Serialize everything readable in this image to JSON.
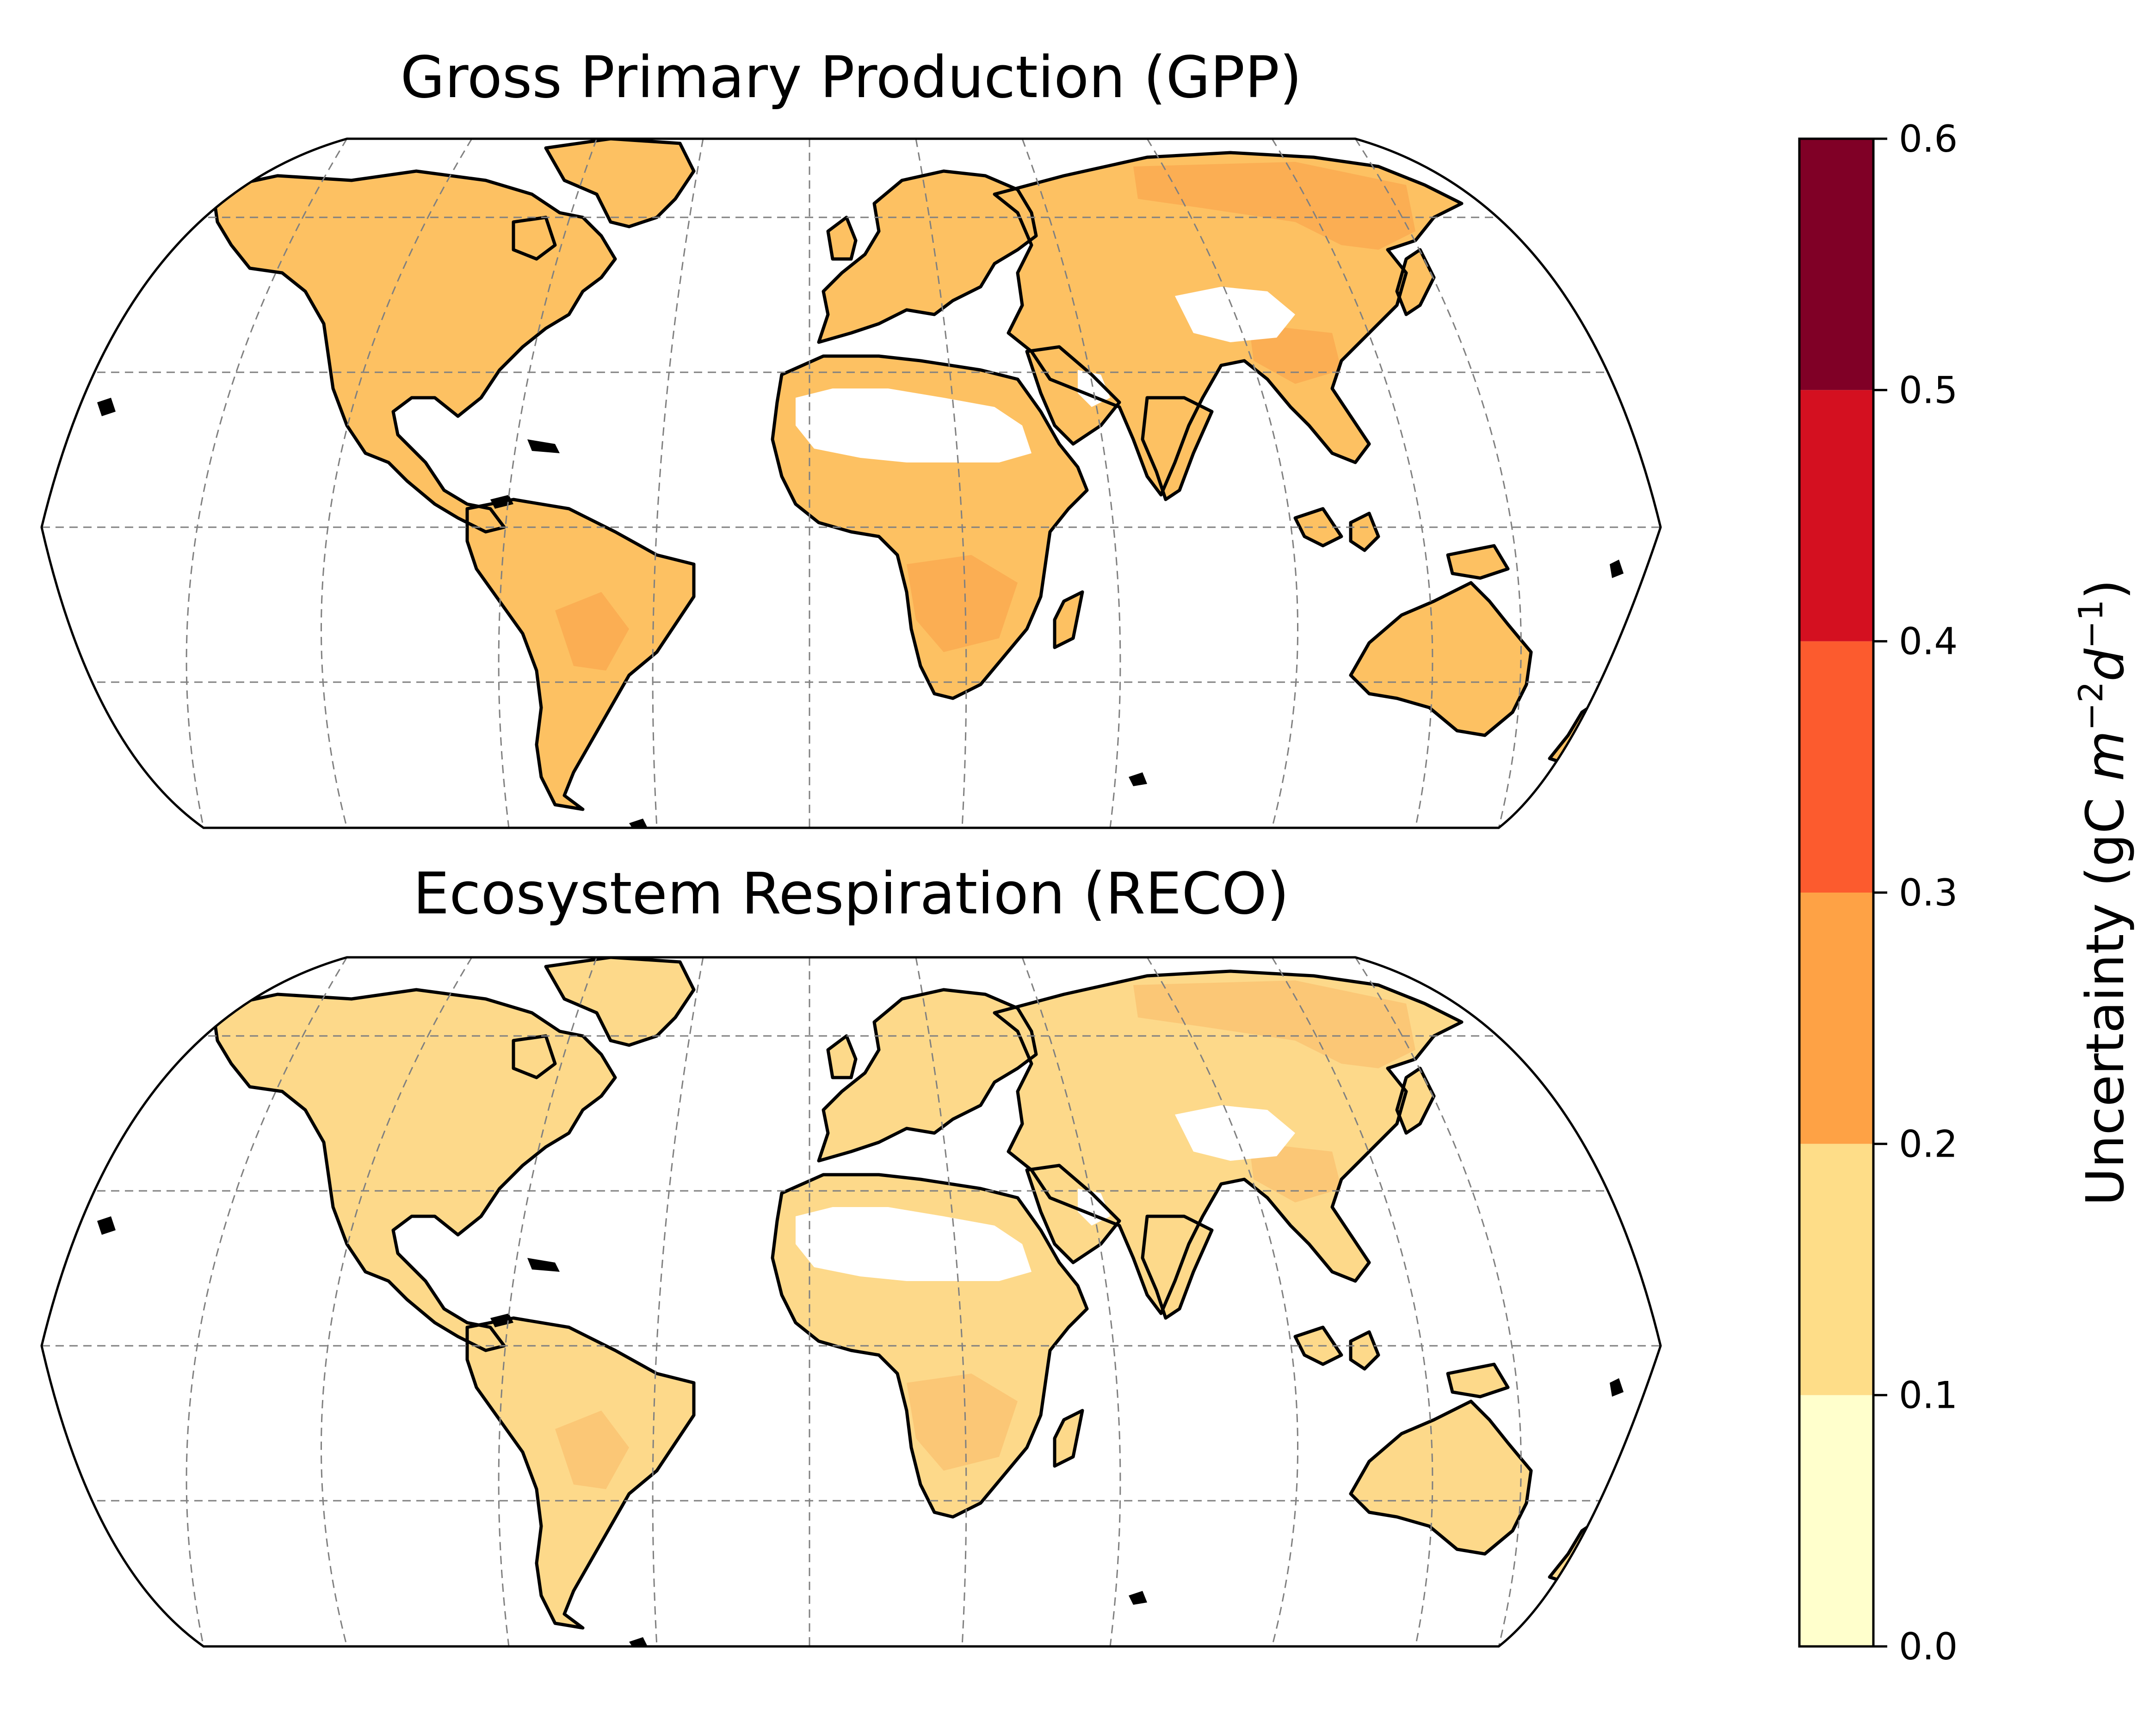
{
  "panels": [
    {
      "title": "Gross Primary Production (GPP)",
      "land_fill": "#fdc162",
      "tint_fill": "#f58b3a",
      "tint_opacity": 0.35
    },
    {
      "title": "Ecosystem Respiration (RECO)",
      "land_fill": "#fdd98a",
      "tint_fill": "#f79a46",
      "tint_opacity": 0.28
    }
  ],
  "colorbar": {
    "label_parts": {
      "prefix": "Uncertainty (gC ",
      "m": "m",
      "m_exp": "−2",
      "d": "d",
      "d_exp": "−1",
      "suffix": ")"
    },
    "ticks": [
      "0.0",
      "0.1",
      "0.2",
      "0.3",
      "0.4",
      "0.5",
      "0.6"
    ],
    "bins": [
      {
        "min": 0.0,
        "max": 0.1,
        "color": "#ffffcc"
      },
      {
        "min": 0.1,
        "max": 0.2,
        "color": "#fedd88"
      },
      {
        "min": 0.2,
        "max": 0.3,
        "color": "#fea245"
      },
      {
        "min": 0.3,
        "max": 0.4,
        "color": "#fc5b2e"
      },
      {
        "min": 0.4,
        "max": 0.5,
        "color": "#d41020"
      },
      {
        "min": 0.5,
        "max": 0.6,
        "color": "#800026"
      }
    ],
    "range": [
      0.0,
      0.6
    ]
  },
  "style": {
    "coast_color": "#000000",
    "grid_color": "#808080",
    "ocean_color": "#ffffff",
    "desert_color": "#ffffff"
  }
}
